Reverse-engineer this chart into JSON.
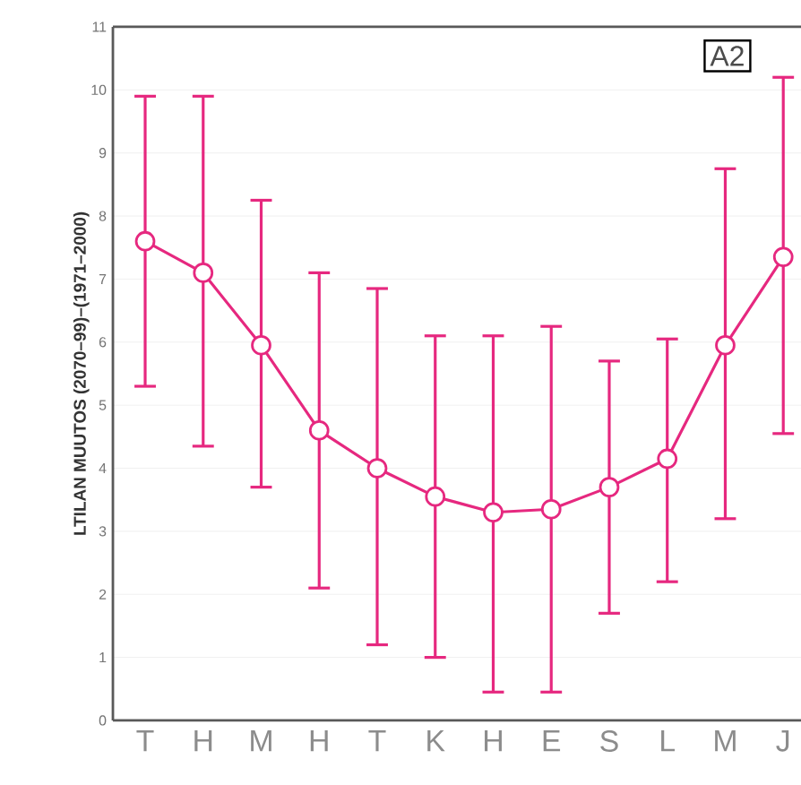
{
  "chart_data": {
    "type": "line",
    "ylabel": "LTILAN MUUTOS (2070–99)–(1971–2000)",
    "categories": [
      "T",
      "H",
      "M",
      "H",
      "T",
      "K",
      "H",
      "E",
      "S",
      "L",
      "M",
      "J"
    ],
    "values": [
      7.6,
      7.1,
      5.95,
      4.6,
      4.0,
      3.55,
      3.3,
      3.35,
      3.7,
      4.15,
      5.95,
      7.35
    ],
    "errors": [
      [
        5.3,
        9.9
      ],
      [
        4.35,
        9.9
      ],
      [
        3.7,
        8.25
      ],
      [
        2.1,
        7.1
      ],
      [
        1.2,
        6.85
      ],
      [
        1.0,
        6.1
      ],
      [
        0.45,
        6.1
      ],
      [
        0.45,
        6.25
      ],
      [
        1.7,
        5.7
      ],
      [
        2.2,
        6.05
      ],
      [
        3.2,
        8.75
      ],
      [
        4.55,
        10.2
      ]
    ],
    "color": "#e6287f",
    "ylim": [
      0,
      11
    ],
    "yticks": [
      0,
      1,
      2,
      3,
      4,
      5,
      6,
      7,
      8,
      9,
      10,
      11
    ],
    "grid": "y",
    "marker": "circle",
    "line_style": "solid",
    "annotations": [
      "A2"
    ]
  }
}
